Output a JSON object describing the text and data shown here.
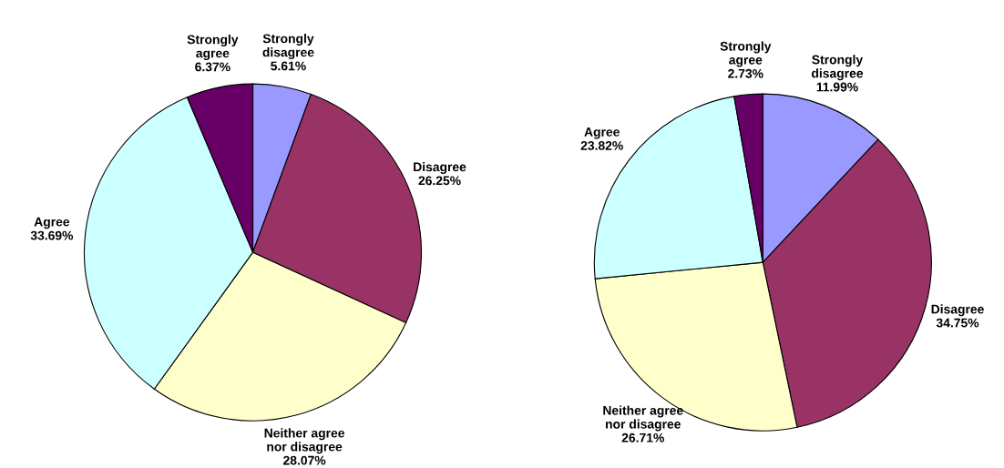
{
  "chart_data": [
    {
      "type": "pie",
      "categories": [
        "Strongly\ndisagree",
        "Disagree",
        "Neither agree\nnor disagree",
        "Agree",
        "Strongly\nagree"
      ],
      "values": [
        5.61,
        26.25,
        28.07,
        33.69,
        6.37
      ],
      "value_labels": [
        "5.61%",
        "26.25%",
        "28.07%",
        "33.69%",
        "6.37%"
      ],
      "colors": [
        "#9999ff",
        "#993366",
        "#ffffcc",
        "#ccffff",
        "#660066"
      ]
    },
    {
      "type": "pie",
      "categories": [
        "Strongly\ndisagree",
        "Disagree",
        "Neither agree\nnor disagree",
        "Agree",
        "Strongly\nagree"
      ],
      "values": [
        11.99,
        34.75,
        26.71,
        23.82,
        2.73
      ],
      "value_labels": [
        "11.99%",
        "34.75%",
        "26.71%",
        "23.82%",
        "2.73%"
      ],
      "colors": [
        "#9999ff",
        "#993366",
        "#ffffcc",
        "#ccffff",
        "#660066"
      ]
    }
  ]
}
